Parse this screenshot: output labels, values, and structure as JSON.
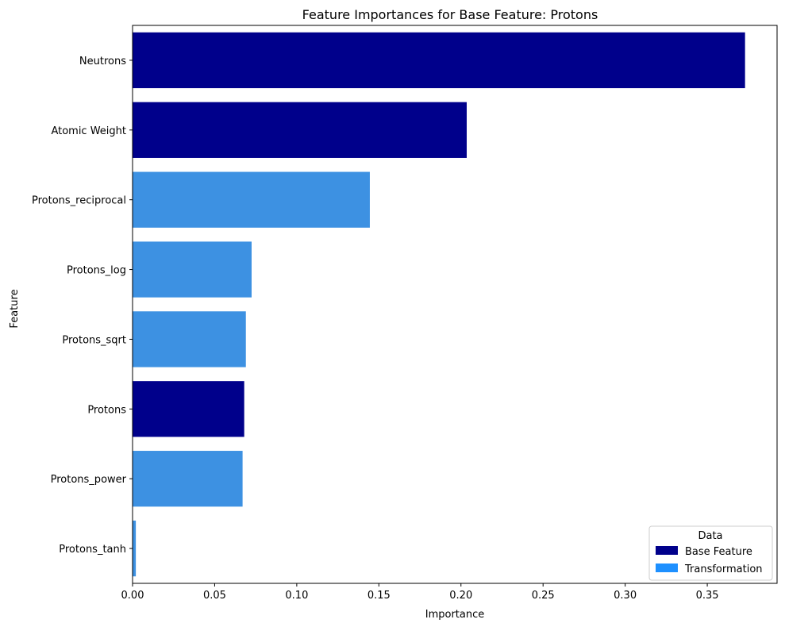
{
  "chart_data": {
    "type": "bar",
    "orientation": "horizontal",
    "title": "Feature Importances for Base Feature: Protons",
    "xlabel": "Importance",
    "ylabel": "Feature",
    "xlim": [
      0,
      0.3925
    ],
    "xticks": [
      0.0,
      0.05,
      0.1,
      0.15,
      0.2,
      0.25,
      0.3,
      0.35
    ],
    "xtick_labels": [
      "0.00",
      "0.05",
      "0.10",
      "0.15",
      "0.20",
      "0.25",
      "0.30",
      "0.35"
    ],
    "categories": [
      "Neutrons",
      "Atomic Weight",
      "Protons_reciprocal",
      "Protons_log",
      "Protons_sqrt",
      "Protons",
      "Protons_power",
      "Protons_tanh"
    ],
    "values": [
      0.373,
      0.2035,
      0.1445,
      0.0725,
      0.069,
      0.068,
      0.067,
      0.002
    ],
    "groups": [
      "Base Feature",
      "Base Feature",
      "Transformation",
      "Transformation",
      "Transformation",
      "Base Feature",
      "Transformation",
      "Transformation"
    ],
    "grid": false,
    "legend": {
      "title": "Data",
      "placement": "lower-right",
      "entries": [
        {
          "label": "Base Feature",
          "color": "#00008b"
        },
        {
          "label": "Transformation",
          "color": "#1e90ff"
        }
      ]
    },
    "colors": {
      "Base Feature": "#00008b",
      "Transformation": "#3d91e2"
    }
  }
}
